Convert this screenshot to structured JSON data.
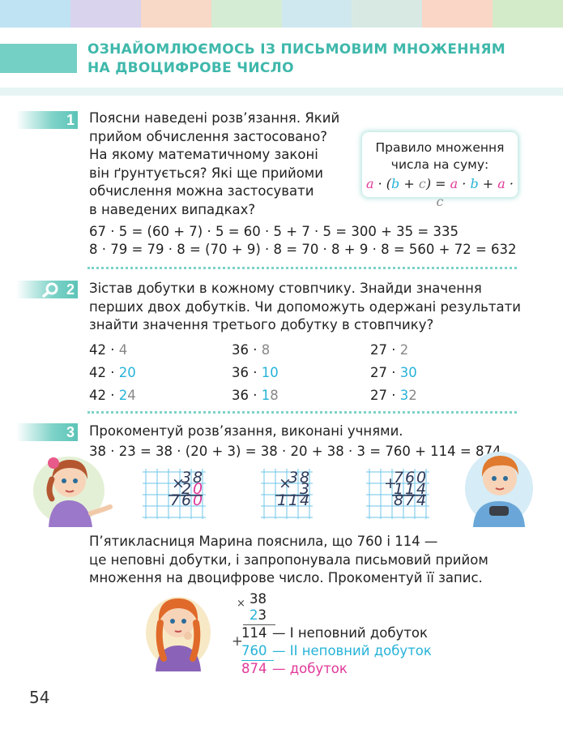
{
  "colors": {
    "stripes": [
      "#bfe3f2",
      "#d9d3ee",
      "#f8d8c6",
      "#d4ecd3",
      "#cfe8ef",
      "#d8e9e4",
      "#fad6c6",
      "#d3ebc9"
    ],
    "accent": "#3fb8ab",
    "magenta": "#e0399a",
    "cyan": "#26b3d8"
  },
  "header": {
    "title_line1": "ОЗНАЙОМЛЮЄМОСЬ ІЗ ПИСЬМОВИМ МНОЖЕННЯМ",
    "title_line2": "НА ДВОЦИФРОВЕ ЧИСЛО"
  },
  "task1": {
    "number": "1",
    "lines": [
      "Поясни наведені розв’язання. Який",
      "прийом обчислення застосовано?",
      "На якому математичному законі",
      "він ґрунтується? Які ще прийоми",
      "обчислення можна застосувати",
      "в наведених випадках?"
    ],
    "rule": {
      "line1": "Правило множення",
      "line2": "числа на суму:",
      "formula": {
        "a1": "a",
        "dot1": " · (",
        "b1": "b",
        "plus1": " + ",
        "c1": "c",
        "eq": ") = ",
        "a2": "a",
        "dot2": " · ",
        "b2": "b",
        "plus2": " + ",
        "a3": "a",
        "dot3": " · ",
        "c2": "c"
      }
    },
    "eq1": "67 · 5 = (60 + 7) · 5 = 60 · 5 + 7 · 5 = 300 + 35 = 335",
    "eq2": "8 · 79 = 79 · 8 = (70 + 9) · 8 = 70 · 8 + 9 · 8 = 560 + 72 = 632"
  },
  "task2": {
    "number": "2",
    "lines": [
      "Зістав добутки в кожному стовпчику. Знайди значення",
      "перших двох добутків. Чи допоможуть одержані результати",
      "знайти значення третього добутку в стовпчику?"
    ],
    "columns": [
      [
        {
          "base": "42 · ",
          "hl1": "4",
          "rest": "",
          "hlclass": "grey"
        },
        {
          "base": "42 · ",
          "hl1": "20",
          "rest": "",
          "hlclass": "cyan"
        },
        {
          "base": "42 · ",
          "hl1": "2",
          "rest": "4",
          "hlclass": "cyan"
        }
      ],
      [
        {
          "base": "36 · ",
          "hl1": "8",
          "rest": "",
          "hlclass": "grey"
        },
        {
          "base": "36 · ",
          "hl1": "10",
          "rest": "",
          "hlclass": "cyan"
        },
        {
          "base": "36 · ",
          "hl1": "1",
          "rest": "8",
          "hlclass": "cyan"
        }
      ],
      [
        {
          "base": "27 · ",
          "hl1": "2",
          "rest": "",
          "hlclass": "grey"
        },
        {
          "base": "27 · ",
          "hl1": "30",
          "rest": "",
          "hlclass": "cyan"
        },
        {
          "base": "27 · ",
          "hl1": "3",
          "rest": "2",
          "hlclass": "cyan"
        }
      ]
    ]
  },
  "task3": {
    "number": "3",
    "intro": "Прокоментуй розв’язання, виконані учнями.",
    "eq": "38 · 23 = 38 · (20 + 3) = 38 · 20 + 38 · 3 = 760 + 114 = 874",
    "grid1": {
      "sign": "×",
      "top": [
        "3",
        "8"
      ],
      "mid": [
        "2",
        "0"
      ],
      "res": [
        "7",
        "6",
        "0"
      ]
    },
    "grid2": {
      "sign": "×",
      "top": [
        "3",
        "8"
      ],
      "mid": [
        "3"
      ],
      "res": [
        "1",
        "1",
        "4"
      ]
    },
    "grid3": {
      "sign": "+",
      "top": [
        "7",
        "6",
        "0"
      ],
      "mid": [
        "1",
        "1",
        "4"
      ],
      "res": [
        "8",
        "7",
        "4"
      ]
    },
    "para": [
      "П’ятикласниця Марина пояснила, що 760 і 114 —",
      "це неповні добутки, і запропонувала письмовий прийом",
      "множення на двоцифрове число. Прокоментуй її запис."
    ],
    "column": {
      "times": "×",
      "plus": "+",
      "n1": "38",
      "n2_hl": "2",
      "n2_rest": "3",
      "p1": "114",
      "p1_label": "— І неповний добуток",
      "p2": "760",
      "p2_label": "— ІІ неповний добуток",
      "sum": "874",
      "sum_label": "— добуток"
    }
  },
  "page_number": "54"
}
